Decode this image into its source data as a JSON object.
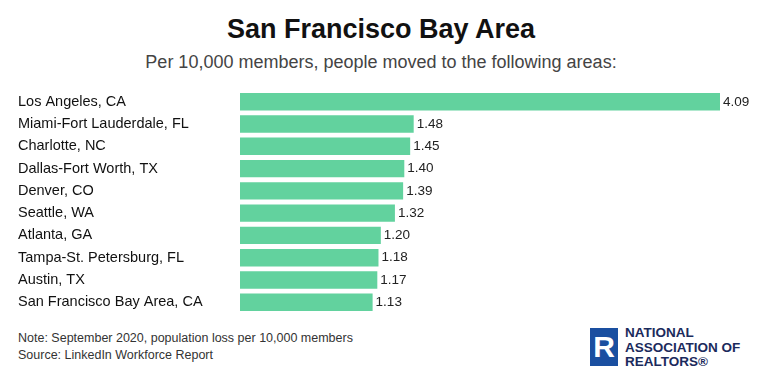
{
  "chart_data": {
    "type": "bar",
    "title": "San Francisco Bay Area",
    "subtitle": "Per 10,000 members, people moved to the following areas:",
    "orientation": "horizontal",
    "categories": [
      "Los Angeles, CA",
      "Miami-Fort Lauderdale, FL",
      "Charlotte, NC",
      "Dallas-Fort Worth, TX",
      "Denver, CO",
      "Seattle, WA",
      "Atlanta, GA",
      "Tampa-St. Petersburg, FL",
      "Austin, TX",
      "San Francisco Bay Area, CA"
    ],
    "values": [
      4.09,
      1.48,
      1.45,
      1.4,
      1.39,
      1.32,
      1.2,
      1.18,
      1.17,
      1.13
    ],
    "value_labels": [
      "4.09",
      "1.48",
      "1.45",
      "1.40",
      "1.39",
      "1.32",
      "1.20",
      "1.18",
      "1.17",
      "1.13"
    ],
    "color": "#62d29e",
    "xlim": [
      0,
      4.09
    ],
    "grid": false,
    "data_labels": true,
    "tick_labels": "y",
    "annotations": [
      "Note: September 2020, population loss per 10,000 members",
      "Source: LinkedIn Workforce Report"
    ],
    "logo": {
      "mark": "R",
      "lines": [
        "NATIONAL",
        "ASSOCIATION OF",
        "REALTORS®"
      ]
    }
  }
}
